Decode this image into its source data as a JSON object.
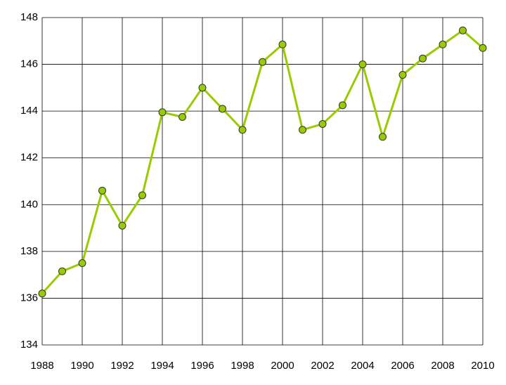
{
  "chart_data": {
    "type": "line",
    "x": [
      1988,
      1989,
      1990,
      1991,
      1992,
      1993,
      1994,
      1995,
      1996,
      1997,
      1998,
      1999,
      2000,
      2001,
      2002,
      2003,
      2004,
      2005,
      2006,
      2007,
      2008,
      2009,
      2010
    ],
    "values": [
      136.2,
      137.15,
      137.5,
      140.6,
      139.1,
      140.4,
      143.95,
      143.75,
      145.0,
      144.1,
      143.2,
      146.1,
      146.85,
      143.2,
      143.45,
      144.25,
      146.0,
      142.9,
      145.55,
      146.25,
      146.85,
      147.45,
      146.7
    ],
    "color": "#99cc00",
    "xlim": [
      1988,
      2010
    ],
    "xticks": [
      1988,
      1990,
      1992,
      1994,
      1996,
      1998,
      2000,
      2002,
      2004,
      2006,
      2008,
      2010
    ],
    "ylim": [
      134,
      148
    ],
    "yticks": [
      134,
      136,
      138,
      140,
      142,
      144,
      146,
      148
    ],
    "grid": true
  }
}
